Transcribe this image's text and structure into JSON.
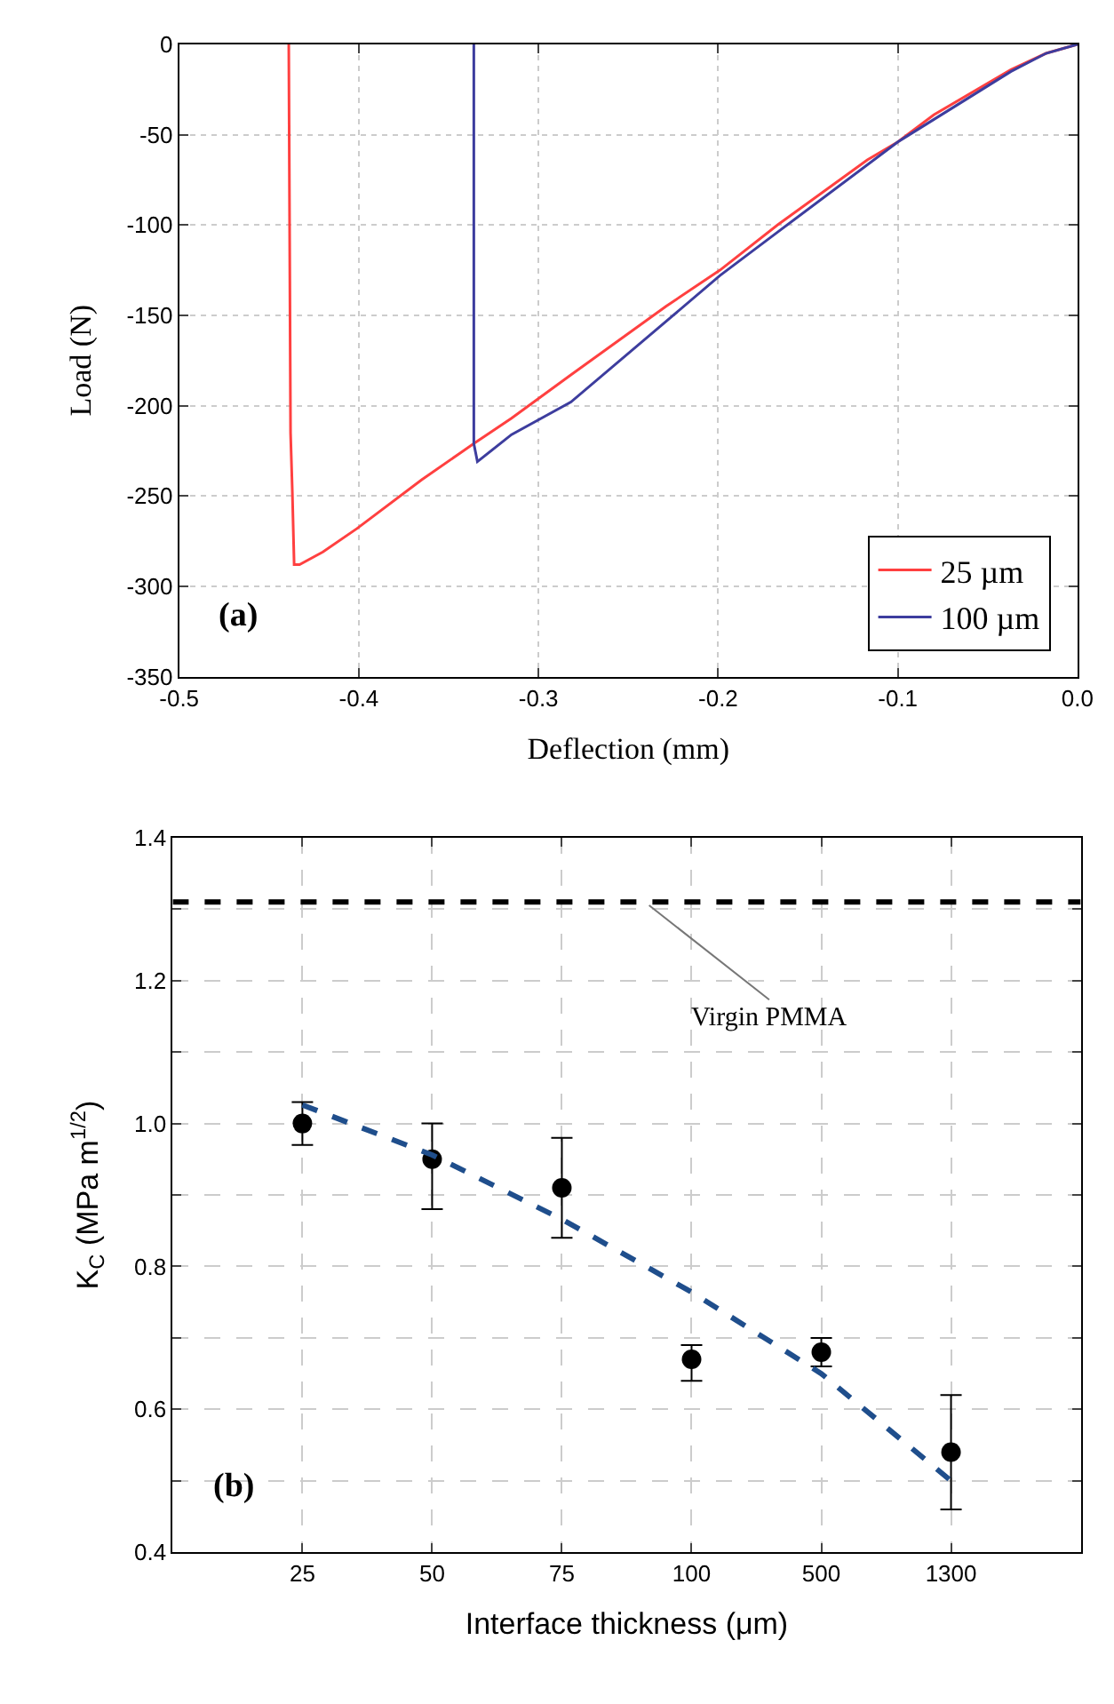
{
  "chart_data": [
    {
      "type": "line",
      "xlabel": "Deflection (mm)",
      "ylabel": "Load (N)",
      "annotations": [
        "(a)"
      ],
      "series": [
        {
          "name": "25 µm",
          "color": "#ff4040",
          "x": [
            0,
            -0.0175,
            -0.037,
            -0.08,
            -0.1,
            -0.117,
            -0.167,
            -0.199,
            -0.229,
            -0.282,
            -0.315,
            -0.336,
            -0.365,
            -0.401,
            -0.42,
            -0.433,
            -0.436,
            -0.437,
            -0.438,
            -0.439
          ],
          "values": [
            0,
            -5,
            -14,
            -39,
            -54,
            -64,
            -100,
            -125,
            -145,
            -183,
            -207,
            -221,
            -241,
            -268,
            -281,
            -288,
            -288,
            -248,
            -215,
            0
          ]
        },
        {
          "name": "100 µm",
          "color": "#3d3d9e",
          "x": [
            0,
            -0.0175,
            -0.037,
            -0.1,
            -0.167,
            -0.199,
            -0.225,
            -0.282,
            -0.315,
            -0.334,
            -0.336,
            -0.336
          ],
          "values": [
            0,
            -5,
            -15,
            -54,
            -104,
            -128,
            -150,
            -198,
            -216,
            -231,
            -221,
            0
          ]
        }
      ],
      "xlim": [
        -0.5,
        0
      ],
      "xticks": [
        -0.5,
        -0.4,
        -0.3,
        -0.2,
        -0.1,
        {
          "value": 0,
          "label": "0.0"
        }
      ],
      "ylim": [
        -350,
        0
      ],
      "yticks": [
        -350,
        -300,
        -250,
        -200,
        -150,
        -100,
        -50,
        0
      ],
      "grid": true,
      "legend": "bottom right",
      "marker": "none",
      "line_style": "solid"
    },
    {
      "type": "scatter",
      "xlabel": "Interface thickness (μm)",
      "ylabel": "K$_{C}$ (MPa m$^{1/2}$)",
      "annotations": [
        "(b)"
      ],
      "categories": [
        "25",
        "50",
        "75",
        "100",
        "500",
        "1300"
      ],
      "series": [
        {
          "type": "scatter",
          "color": "#000000",
          "marker": "circle",
          "values": [
            1.0,
            0.95,
            0.91,
            0.67,
            0.68,
            0.54
          ],
          "errors": [
            [
              0.97,
              1.03
            ],
            [
              0.88,
              1.0
            ],
            [
              0.84,
              0.98
            ],
            [
              0.64,
              0.69
            ],
            [
              0.66,
              0.7
            ],
            [
              0.46,
              0.62
            ]
          ]
        },
        {
          "type": "line",
          "color": "#1f4e8c",
          "marker": "none",
          "line_style": "dashed",
          "values": [
            1.026,
            0.956,
            0.866,
            0.764,
            0.65,
            0.5
          ]
        }
      ],
      "ref_lines": [
        {
          "axis": "y",
          "value": 1.31,
          "label": "Virgin PMMA",
          "color": "#000000",
          "line_style": "dashed"
        }
      ],
      "ylim": [
        0.4,
        1.4
      ],
      "yticks": [
        0.4,
        {
          "value": 0.5,
          "label": null
        },
        0.6,
        {
          "value": 0.7,
          "label": null
        },
        0.8,
        {
          "value": 0.9,
          "label": null
        },
        {
          "value": 1.0,
          "label": "1.0"
        },
        {
          "value": 1.1,
          "label": null
        },
        1.2,
        {
          "value": 1.3,
          "label": null
        },
        1.4
      ],
      "grid": true,
      "legend": false
    }
  ]
}
